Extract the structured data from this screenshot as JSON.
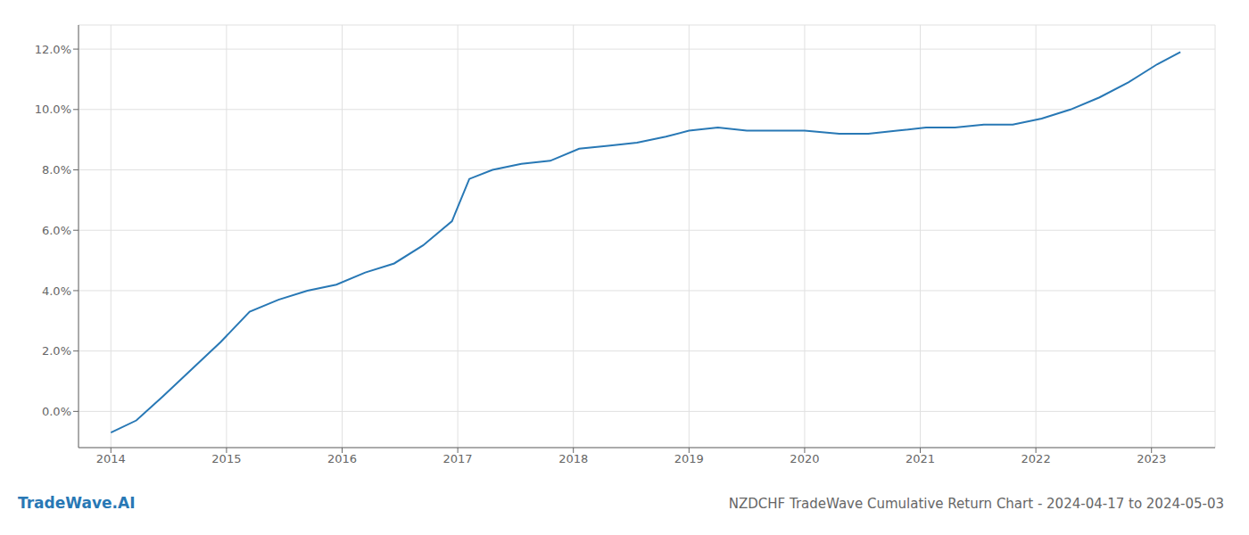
{
  "chart_data": {
    "type": "line",
    "title": "NZDCHF TradeWave Cumulative Return Chart - 2024-04-17 to 2024-05-03",
    "annotations": [
      "TradeWave.AI"
    ],
    "color": "#2878b5",
    "grid": true,
    "x": [
      2014.0,
      2014.22,
      2014.45,
      2014.7,
      2014.95,
      2015.2,
      2015.45,
      2015.7,
      2015.95,
      2016.2,
      2016.45,
      2016.7,
      2016.95,
      2017.1,
      2017.3,
      2017.55,
      2017.8,
      2018.05,
      2018.3,
      2018.55,
      2018.8,
      2019.0,
      2019.25,
      2019.5,
      2019.75,
      2020.0,
      2020.3,
      2020.55,
      2020.8,
      2021.05,
      2021.3,
      2021.55,
      2021.8,
      2022.05,
      2022.3,
      2022.55,
      2022.8,
      2023.05,
      2023.25
    ],
    "values": [
      -0.007,
      -0.003,
      0.005,
      0.014,
      0.023,
      0.033,
      0.037,
      0.04,
      0.042,
      0.046,
      0.049,
      0.055,
      0.063,
      0.077,
      0.08,
      0.082,
      0.083,
      0.087,
      0.088,
      0.089,
      0.091,
      0.093,
      0.094,
      0.093,
      0.093,
      0.093,
      0.092,
      0.092,
      0.093,
      0.094,
      0.094,
      0.095,
      0.095,
      0.097,
      0.1,
      0.104,
      0.109,
      0.115,
      0.119
    ],
    "xlim": [
      2013.72,
      2023.55
    ],
    "ylim": [
      -0.012,
      0.128
    ],
    "xticks": [
      2014,
      2015,
      2016,
      2017,
      2018,
      2019,
      2020,
      2021,
      2022,
      2023
    ],
    "yticks": [
      {
        "value": 0.0,
        "label": "0.0%"
      },
      {
        "value": 0.02,
        "label": "2.0%"
      },
      {
        "value": 0.04,
        "label": "4.0%"
      },
      {
        "value": 0.06,
        "label": "6.0%"
      },
      {
        "value": 0.08,
        "label": "8.0%"
      },
      {
        "value": 0.1,
        "label": "10.0%"
      },
      {
        "value": 0.12,
        "label": "12.0%"
      }
    ]
  }
}
